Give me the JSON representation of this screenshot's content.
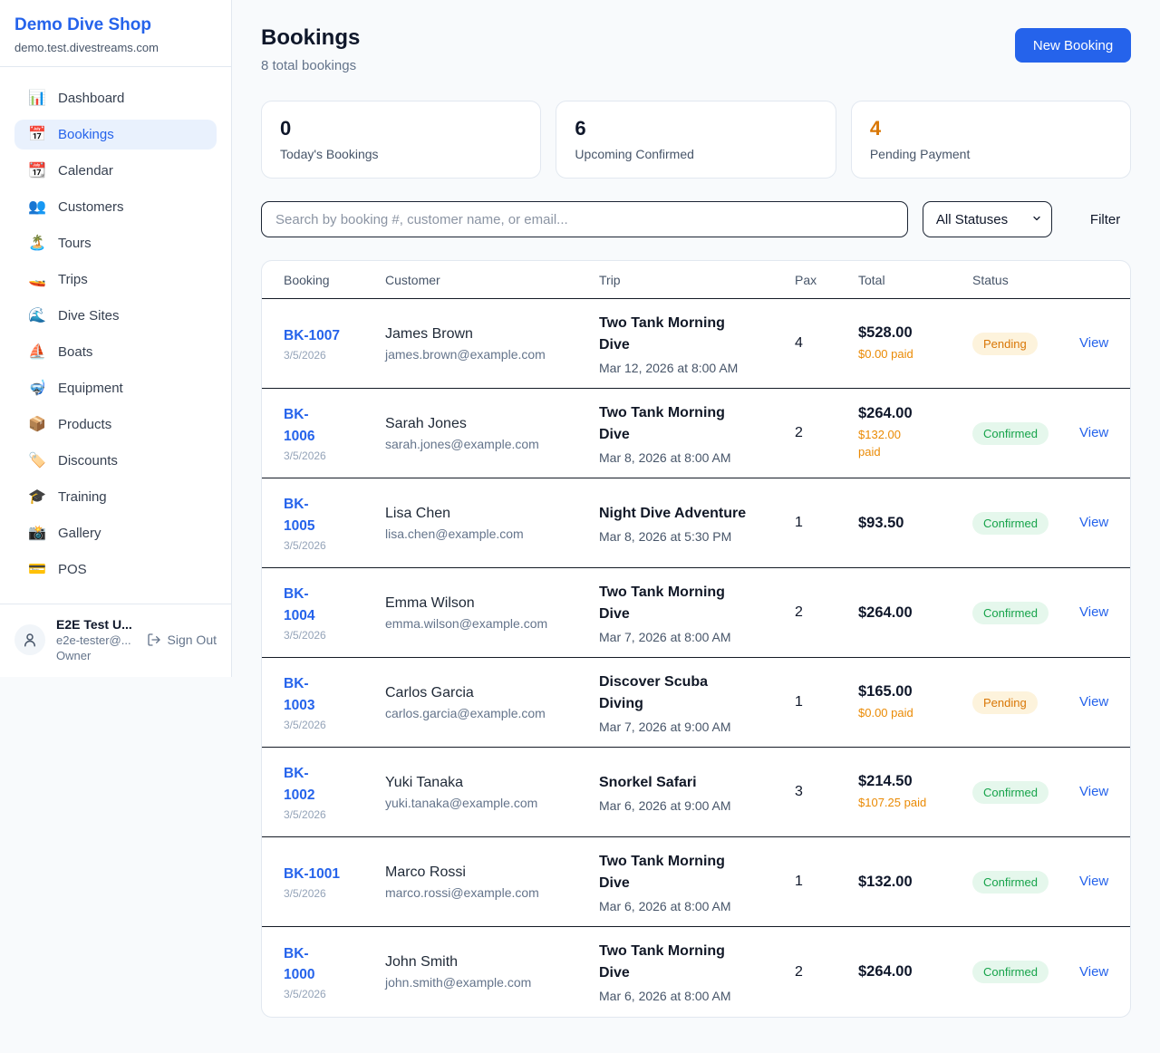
{
  "colors": {
    "accent_blue": "#2563eb",
    "pending_orange": "#d97706",
    "confirmed_green": "#16a34a",
    "paid_orange": "#ea8a04"
  },
  "sidebar": {
    "brand": {
      "name": "Demo Dive Shop",
      "domain": "demo.test.divestreams.com"
    },
    "nav": [
      {
        "label": "Dashboard",
        "icon": "📊",
        "icon_name": "bar-chart-icon",
        "active": false
      },
      {
        "label": "Bookings",
        "icon": "📅",
        "icon_name": "calendar-icon",
        "active": true
      },
      {
        "label": "Calendar",
        "icon": "📆",
        "icon_name": "tear-off-calendar-icon",
        "active": false
      },
      {
        "label": "Customers",
        "icon": "👥",
        "icon_name": "people-icon",
        "active": false
      },
      {
        "label": "Tours",
        "icon": "🏝️",
        "icon_name": "island-icon",
        "active": false
      },
      {
        "label": "Trips",
        "icon": "🚤",
        "icon_name": "speedboat-icon",
        "active": false
      },
      {
        "label": "Dive Sites",
        "icon": "🌊",
        "icon_name": "wave-icon",
        "active": false
      },
      {
        "label": "Boats",
        "icon": "⛵",
        "icon_name": "sailboat-icon",
        "active": false
      },
      {
        "label": "Equipment",
        "icon": "🤿",
        "icon_name": "diving-mask-icon",
        "active": false
      },
      {
        "label": "Products",
        "icon": "📦",
        "icon_name": "package-icon",
        "active": false
      },
      {
        "label": "Discounts",
        "icon": "🏷️",
        "icon_name": "tag-icon",
        "active": false
      },
      {
        "label": "Training",
        "icon": "🎓",
        "icon_name": "graduation-cap-icon",
        "active": false
      },
      {
        "label": "Gallery",
        "icon": "📸",
        "icon_name": "camera-icon",
        "active": false
      },
      {
        "label": "POS",
        "icon": "💳",
        "icon_name": "credit-card-icon",
        "active": false
      }
    ],
    "user": {
      "name": "E2E Test U...",
      "email": "e2e-tester@...",
      "role": "Owner",
      "sign_out_label": "Sign Out"
    }
  },
  "header": {
    "title": "Bookings",
    "subtitle": "8 total bookings",
    "new_booking_label": "New Booking"
  },
  "stats": [
    {
      "value": "0",
      "label": "Today's Bookings",
      "color": "#0f172a"
    },
    {
      "value": "6",
      "label": "Upcoming Confirmed",
      "color": "#0f172a"
    },
    {
      "value": "4",
      "label": "Pending Payment",
      "color": "#d97706"
    }
  ],
  "filters": {
    "search_placeholder": "Search by booking #, customer name, or email...",
    "status_selected": "All Statuses",
    "filter_label": "Filter"
  },
  "table": {
    "columns": [
      "Booking",
      "Customer",
      "Trip",
      "Pax",
      "Total",
      "Status"
    ],
    "view_label": "View",
    "rows": [
      {
        "id": "BK-1007",
        "id_wrapped": false,
        "date": "3/5/2026",
        "customer": "James Brown",
        "email": "james.brown@example.com",
        "trip": "Two Tank Morning Dive",
        "trip_wrapped": true,
        "trip_datetime": "Mar 12, 2026 at 8:00 AM",
        "pax": "4",
        "total": "$528.00",
        "paid": "$0.00 paid",
        "paid_wrapped": false,
        "status": "Pending"
      },
      {
        "id": "BK-1006",
        "id_wrapped": true,
        "date": "3/5/2026",
        "customer": "Sarah Jones",
        "email": "sarah.jones@example.com",
        "trip": "Two Tank Morning Dive",
        "trip_wrapped": true,
        "trip_datetime": "Mar 8, 2026 at 8:00 AM",
        "pax": "2",
        "total": "$264.00",
        "paid": "$132.00 paid",
        "paid_wrapped": true,
        "status": "Confirmed"
      },
      {
        "id": "BK-1005",
        "id_wrapped": true,
        "date": "3/5/2026",
        "customer": "Lisa Chen",
        "email": "lisa.chen@example.com",
        "trip": "Night Dive Adventure",
        "trip_wrapped": false,
        "trip_datetime": "Mar 8, 2026 at 5:30 PM",
        "pax": "1",
        "total": "$93.50",
        "paid": null,
        "paid_wrapped": false,
        "status": "Confirmed"
      },
      {
        "id": "BK-1004",
        "id_wrapped": true,
        "date": "3/5/2026",
        "customer": "Emma Wilson",
        "email": "emma.wilson@example.com",
        "trip": "Two Tank Morning Dive",
        "trip_wrapped": true,
        "trip_datetime": "Mar 7, 2026 at 8:00 AM",
        "pax": "2",
        "total": "$264.00",
        "paid": null,
        "paid_wrapped": false,
        "status": "Confirmed"
      },
      {
        "id": "BK-1003",
        "id_wrapped": true,
        "date": "3/5/2026",
        "customer": "Carlos Garcia",
        "email": "carlos.garcia@example.com",
        "trip": "Discover Scuba Diving",
        "trip_wrapped": true,
        "trip_datetime": "Mar 7, 2026 at 9:00 AM",
        "pax": "1",
        "total": "$165.00",
        "paid": "$0.00 paid",
        "paid_wrapped": false,
        "status": "Pending"
      },
      {
        "id": "BK-1002",
        "id_wrapped": true,
        "date": "3/5/2026",
        "customer": "Yuki Tanaka",
        "email": "yuki.tanaka@example.com",
        "trip": "Snorkel Safari",
        "trip_wrapped": false,
        "trip_datetime": "Mar 6, 2026 at 9:00 AM",
        "pax": "3",
        "total": "$214.50",
        "paid": "$107.25 paid",
        "paid_wrapped": false,
        "status": "Confirmed"
      },
      {
        "id": "BK-1001",
        "id_wrapped": false,
        "date": "3/5/2026",
        "customer": "Marco Rossi",
        "email": "marco.rossi@example.com",
        "trip": "Two Tank Morning Dive",
        "trip_wrapped": true,
        "trip_datetime": "Mar 6, 2026 at 8:00 AM",
        "pax": "1",
        "total": "$132.00",
        "paid": null,
        "paid_wrapped": false,
        "status": "Confirmed"
      },
      {
        "id": "BK-1000",
        "id_wrapped": true,
        "date": "3/5/2026",
        "customer": "John Smith",
        "email": "john.smith@example.com",
        "trip": "Two Tank Morning Dive",
        "trip_wrapped": true,
        "trip_datetime": "Mar 6, 2026 at 8:00 AM",
        "pax": "2",
        "total": "$264.00",
        "paid": null,
        "paid_wrapped": false,
        "status": "Confirmed"
      }
    ]
  }
}
